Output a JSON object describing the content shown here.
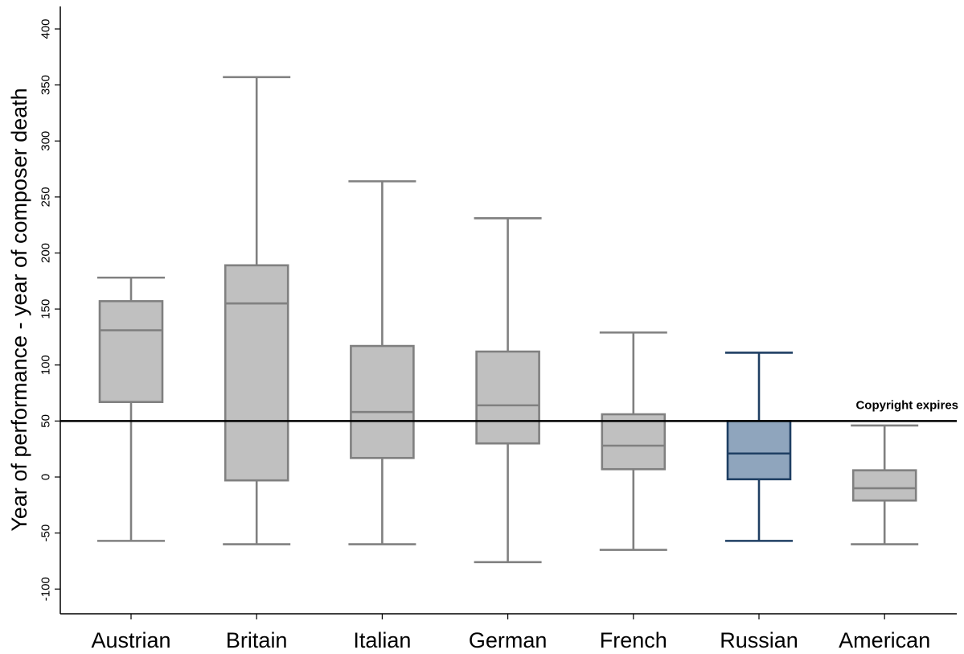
{
  "chart_data": {
    "type": "box",
    "title": "",
    "xlabel": "",
    "ylabel": "Year of performance - year of composer death",
    "ylim": [
      -120,
      420
    ],
    "yticks": [
      400,
      350,
      300,
      250,
      200,
      150,
      100,
      50,
      0,
      -50,
      -100
    ],
    "grid": false,
    "categories": [
      "Austrian",
      "Britain",
      "Italian",
      "German",
      "French",
      "Russian",
      "American"
    ],
    "boxes": [
      {
        "category": "Austrian",
        "min": -57,
        "q1": 67,
        "median": 131,
        "q3": 157,
        "max": 178,
        "color": "#c0c0c0",
        "stroke": "#808080"
      },
      {
        "category": "Britain",
        "min": -60,
        "q1": -3,
        "median": 155,
        "q3": 189,
        "max": 357,
        "color": "#c0c0c0",
        "stroke": "#808080"
      },
      {
        "category": "Italian",
        "min": -60,
        "q1": 17,
        "median": 58,
        "q3": 117,
        "max": 264,
        "color": "#c0c0c0",
        "stroke": "#808080"
      },
      {
        "category": "German",
        "min": -76,
        "q1": 30,
        "median": 64,
        "q3": 112,
        "max": 231,
        "color": "#c0c0c0",
        "stroke": "#808080"
      },
      {
        "category": "French",
        "min": -65,
        "q1": 7,
        "median": 28,
        "q3": 56,
        "max": 129,
        "color": "#c0c0c0",
        "stroke": "#808080"
      },
      {
        "category": "Russian",
        "min": -57,
        "q1": -2,
        "median": 21,
        "q3": 50,
        "max": 111,
        "color": "#8fa5bd",
        "stroke": "#1f3f63"
      },
      {
        "category": "American",
        "min": -60,
        "q1": -21,
        "median": -10,
        "q3": 6,
        "max": 46,
        "color": "#c0c0c0",
        "stroke": "#808080"
      }
    ],
    "reference_line": {
      "y": 50,
      "label": "Copyright expires",
      "color": "#000000"
    }
  }
}
